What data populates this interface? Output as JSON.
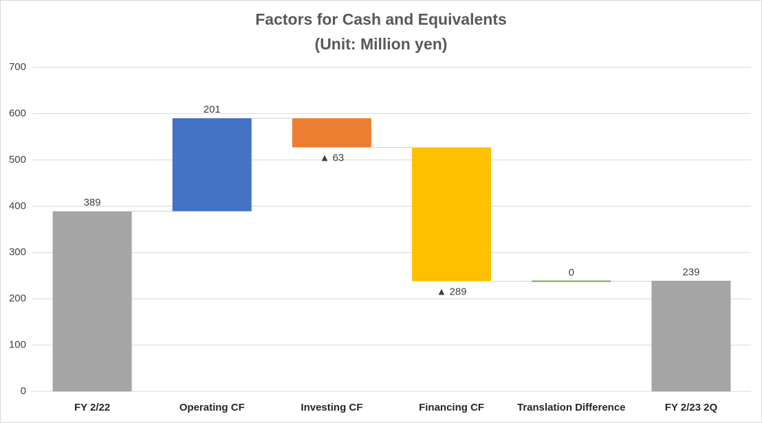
{
  "chart_data": {
    "type": "waterfall",
    "title": "Factors for Cash and Equivalents",
    "subtitle": "(Unit: Million yen)",
    "categories": [
      "FY 2/22",
      "Operating CF",
      "Investing CF",
      "Financing CF",
      "Translation Difference",
      "FY 2/23 2Q"
    ],
    "values": [
      389,
      201,
      -63,
      -289,
      0,
      239
    ],
    "value_labels": [
      "389",
      "201",
      "▲ 63",
      "▲ 289",
      "0",
      "239"
    ],
    "measure": [
      "absolute",
      "relative",
      "relative",
      "relative",
      "relative",
      "absolute"
    ],
    "colors": [
      "#a5a5a5",
      "#4472c4",
      "#ed7d31",
      "#ffc000",
      "#70ad47",
      "#a5a5a5"
    ],
    "ylim": [
      0,
      700
    ],
    "yticks": [
      0,
      100,
      200,
      300,
      400,
      500,
      600,
      700
    ],
    "grid": true
  }
}
